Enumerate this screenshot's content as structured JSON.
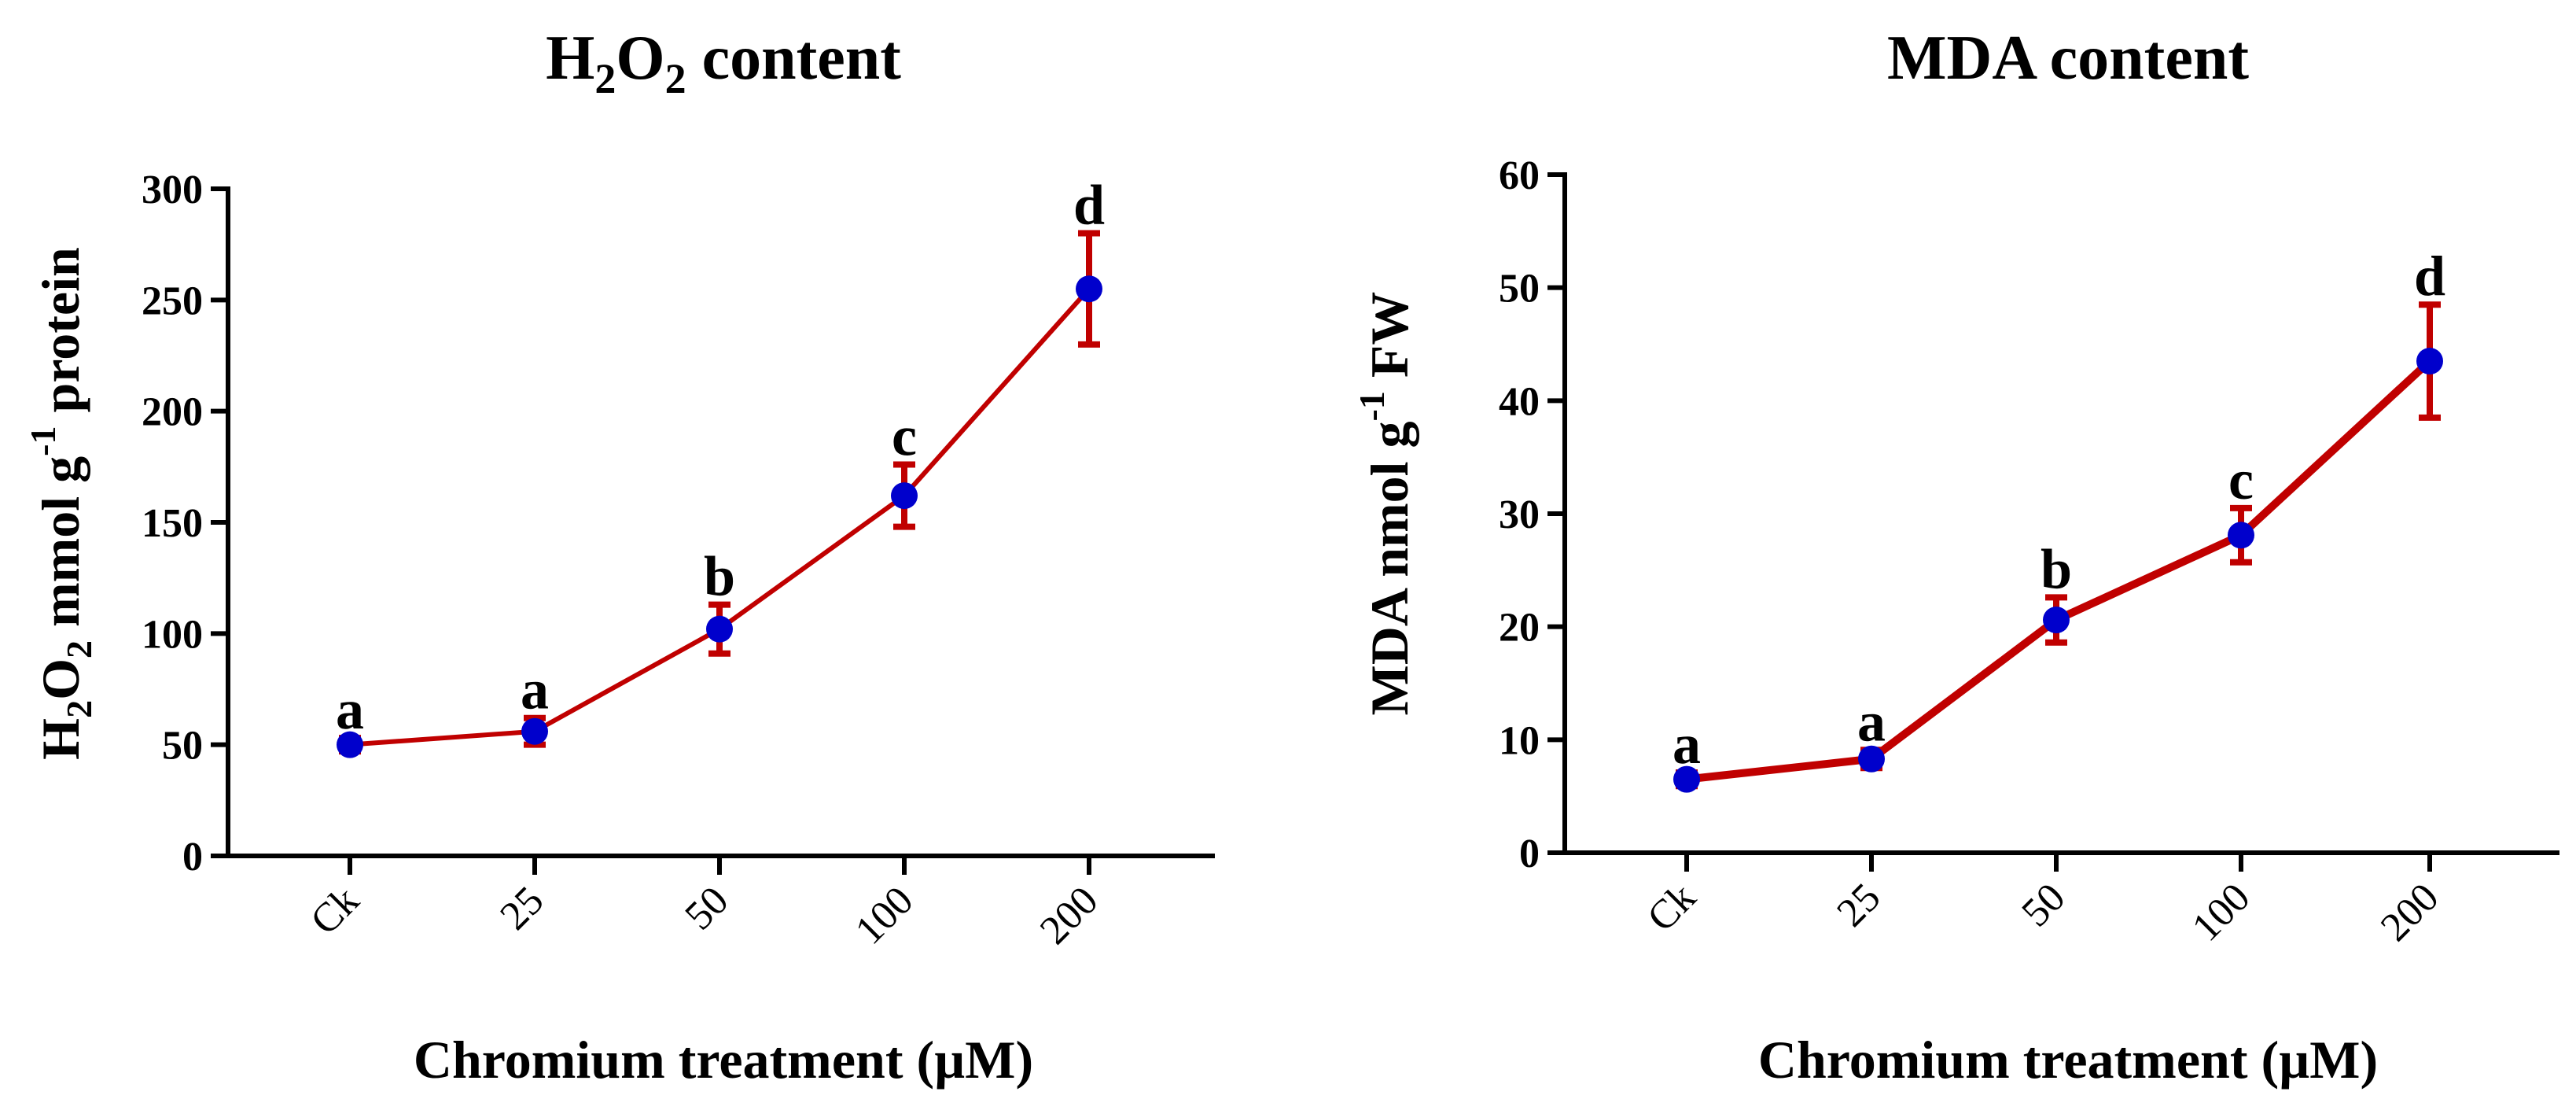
{
  "chart_data": [
    {
      "type": "line",
      "title_main": "H",
      "title_sub1": "2",
      "title_mid": "O",
      "title_sub2": "2",
      "title_tail": " content",
      "xlabel": "Chromium treatment (µM)",
      "ylabel_parts": {
        "a": "H",
        "sub1": "2",
        "b": "O",
        "sub2": "2",
        "c": " mmol g",
        "sup": "-1",
        "d": " protein"
      },
      "categories": [
        "Ck",
        "25",
        "50",
        "100",
        "200"
      ],
      "ylim": [
        0,
        300
      ],
      "yticks": [
        "0",
        "50",
        "100",
        "150",
        "200",
        "250",
        "300"
      ],
      "values": [
        50,
        56,
        102,
        162,
        255
      ],
      "errors": [
        3,
        6,
        11,
        14,
        25
      ],
      "letters": [
        "a",
        "a",
        "b",
        "c",
        "d"
      ],
      "line_color": "#c00000",
      "marker_color": "#0000cc"
    },
    {
      "type": "line",
      "title": "MDA content",
      "xlabel": "Chromium treatment (µM)",
      "ylabel_parts": {
        "a": "MDA nmol g",
        "sup": "-1",
        "b": " FW"
      },
      "categories": [
        "Ck",
        "25",
        "50",
        "100",
        "200"
      ],
      "ylim": [
        0,
        60
      ],
      "yticks": [
        "0",
        "10",
        "20",
        "30",
        "40",
        "50",
        "60"
      ],
      "values": [
        6.5,
        8.3,
        20.6,
        28.1,
        43.5
      ],
      "errors": [
        0.6,
        0.8,
        2.0,
        2.4,
        5.0
      ],
      "letters": [
        "a",
        "a",
        "b",
        "c",
        "d"
      ],
      "line_color": "#c00000",
      "marker_color": "#0000cc"
    }
  ]
}
